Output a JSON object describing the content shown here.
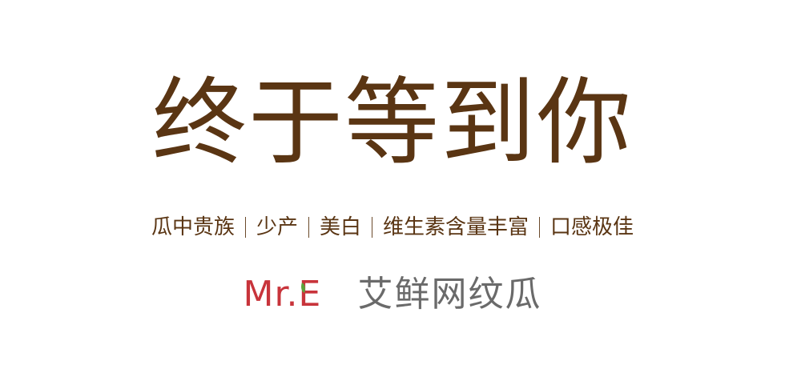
{
  "headline": "终于等到你",
  "features": [
    "瓜中贵族",
    "少产",
    "美白",
    "维生素含量丰富",
    "口感极佳"
  ],
  "brand": {
    "logo_text": "Mr.E",
    "name": "艾鲜网纹瓜"
  },
  "colors": {
    "headline": "#5a3513",
    "logo_red": "#c8343b",
    "logo_leaf": "#5aa33a",
    "brand_name": "#6a6a6a",
    "background": "#ffffff"
  }
}
